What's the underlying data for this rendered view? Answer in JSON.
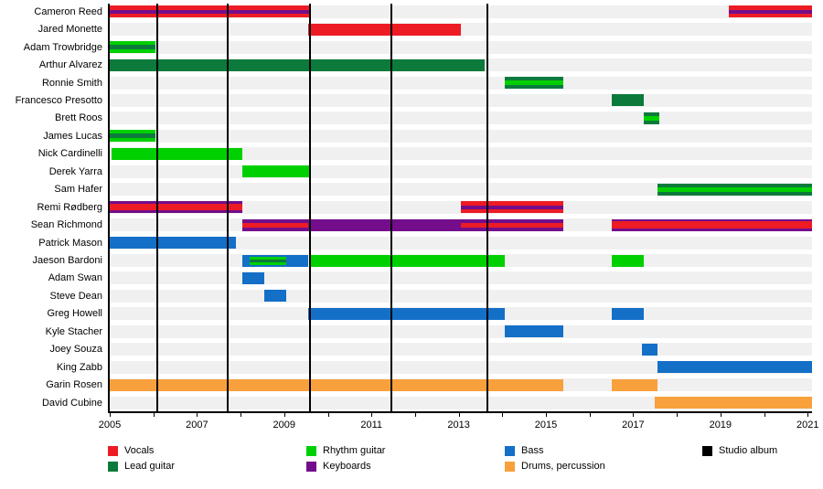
{
  "chart_data": {
    "type": "timeline",
    "title": "",
    "x_axis": {
      "min": 2005,
      "max": 2021.1,
      "tick_years": [
        2005,
        2006,
        2007,
        2008,
        2009,
        2010,
        2011,
        2012,
        2013,
        2014,
        2015,
        2016,
        2017,
        2018,
        2019,
        2020,
        2021
      ],
      "labeled_years": [
        2005,
        2007,
        2009,
        2011,
        2013,
        2015,
        2017,
        2019,
        2021
      ]
    },
    "roles": {
      "vocals": {
        "label": "Vocals",
        "color": "#ED1C24"
      },
      "lead": {
        "label": "Lead guitar",
        "color": "#0B7A3B"
      },
      "rhythm": {
        "label": "Rhythm guitar",
        "color": "#00D000"
      },
      "keys": {
        "label": "Keyboards",
        "color": "#740D8C"
      },
      "bass": {
        "label": "Bass",
        "color": "#146FC7"
      },
      "drums": {
        "label": "Drums, percussion",
        "color": "#F8A13C"
      },
      "album": {
        "label": "Studio album",
        "color": "#000000"
      }
    },
    "studio_album_years": [
      2006.1,
      2007.7,
      2009.6,
      2011.45,
      2013.65
    ],
    "legend_columns": [
      [
        "vocals",
        "lead"
      ],
      [
        "rhythm",
        "keys"
      ],
      [
        "bass",
        "drums"
      ],
      [
        "album"
      ]
    ],
    "members": [
      {
        "name": "Cameron Reed",
        "bars": [
          {
            "start": 2005.0,
            "end": 2009.6,
            "role": "vocals",
            "stripe": "keys",
            "stripe_h": 4
          },
          {
            "start": 2019.2,
            "end": 2021.1,
            "role": "vocals",
            "stripe": "keys",
            "stripe_h": 4
          }
        ]
      },
      {
        "name": "Jared Monette",
        "bars": [
          {
            "start": 2009.55,
            "end": 2013.05,
            "role": "vocals"
          }
        ]
      },
      {
        "name": "Adam Trowbridge",
        "bars": [
          {
            "start": 2005.0,
            "end": 2006.05,
            "role": "rhythm",
            "stripe": "lead",
            "stripe_h": 5
          }
        ]
      },
      {
        "name": "Arthur Alvarez",
        "bars": [
          {
            "start": 2005.0,
            "end": 2013.6,
            "role": "lead"
          }
        ]
      },
      {
        "name": "Ronnie Smith",
        "bars": [
          {
            "start": 2014.05,
            "end": 2015.4,
            "role": "lead",
            "stripe": "rhythm",
            "stripe_h": 5
          }
        ]
      },
      {
        "name": "Francesco Presotto",
        "bars": [
          {
            "start": 2016.5,
            "end": 2017.25,
            "role": "lead"
          }
        ]
      },
      {
        "name": "Brett Roos",
        "bars": [
          {
            "start": 2017.25,
            "end": 2017.6,
            "role": "lead",
            "stripe": "rhythm",
            "stripe_h": 5
          }
        ]
      },
      {
        "name": "James Lucas",
        "bars": [
          {
            "start": 2005.0,
            "end": 2006.05,
            "role": "rhythm",
            "stripe": "lead",
            "stripe_h": 5
          }
        ]
      },
      {
        "name": "Nick Cardinelli",
        "bars": [
          {
            "start": 2005.05,
            "end": 2008.05,
            "role": "rhythm"
          }
        ]
      },
      {
        "name": "Derek Yarra",
        "bars": [
          {
            "start": 2008.05,
            "end": 2009.6,
            "role": "rhythm"
          }
        ]
      },
      {
        "name": "Sam Hafer",
        "bars": [
          {
            "start": 2017.55,
            "end": 2021.1,
            "role": "lead",
            "stripe": "rhythm",
            "stripe_h": 5
          }
        ]
      },
      {
        "name": "Remi Rødberg",
        "bars": [
          {
            "start": 2005.0,
            "end": 2008.05,
            "role": "keys",
            "stripe": "vocals",
            "stripe_h": 7
          },
          {
            "start": 2013.05,
            "end": 2015.4,
            "role": "vocals",
            "stripe": "keys",
            "stripe_h": 4
          }
        ]
      },
      {
        "name": "Sean Richmond",
        "bars": [
          {
            "start": 2008.05,
            "end": 2009.55,
            "role": "keys",
            "stripe": "vocals",
            "stripe_h": 5
          },
          {
            "start": 2009.55,
            "end": 2013.05,
            "role": "keys"
          },
          {
            "start": 2013.05,
            "end": 2015.4,
            "role": "keys",
            "stripe": "vocals",
            "stripe_h": 5
          },
          {
            "start": 2016.5,
            "end": 2021.1,
            "role": "keys",
            "stripe": "vocals",
            "stripe_h": 8
          }
        ]
      },
      {
        "name": "Patrick Mason",
        "bars": [
          {
            "start": 2005.0,
            "end": 2007.9,
            "role": "bass"
          }
        ]
      },
      {
        "name": "Jaeson Bardoni",
        "bars": [
          {
            "start": 2008.05,
            "end": 2008.2,
            "role": "bass"
          },
          {
            "start": 2008.2,
            "end": 2009.05,
            "role": "bass",
            "stripe": "rhythm",
            "stripe_h": 9,
            "stripe2": "lead",
            "stripe2_h": 3
          },
          {
            "start": 2009.05,
            "end": 2009.55,
            "role": "bass"
          },
          {
            "start": 2009.6,
            "end": 2014.05,
            "role": "rhythm"
          },
          {
            "start": 2016.5,
            "end": 2017.25,
            "role": "rhythm"
          }
        ]
      },
      {
        "name": "Adam Swan",
        "bars": [
          {
            "start": 2008.05,
            "end": 2008.55,
            "role": "bass"
          }
        ]
      },
      {
        "name": "Steve Dean",
        "bars": [
          {
            "start": 2008.55,
            "end": 2009.05,
            "role": "bass"
          }
        ]
      },
      {
        "name": "Greg Howell",
        "bars": [
          {
            "start": 2009.55,
            "end": 2014.05,
            "role": "bass"
          },
          {
            "start": 2016.5,
            "end": 2017.25,
            "role": "bass"
          }
        ]
      },
      {
        "name": "Kyle Stacher",
        "bars": [
          {
            "start": 2014.05,
            "end": 2015.4,
            "role": "bass"
          }
        ]
      },
      {
        "name": "Joey Souza",
        "bars": [
          {
            "start": 2017.2,
            "end": 2017.55,
            "role": "bass"
          }
        ]
      },
      {
        "name": "King Zabb",
        "bars": [
          {
            "start": 2017.55,
            "end": 2021.1,
            "role": "bass"
          }
        ]
      },
      {
        "name": "Garin Rosen",
        "bars": [
          {
            "start": 2005.0,
            "end": 2015.4,
            "role": "drums"
          },
          {
            "start": 2016.5,
            "end": 2017.55,
            "role": "drums"
          }
        ]
      },
      {
        "name": "David Cubine",
        "bars": [
          {
            "start": 2017.5,
            "end": 2021.1,
            "role": "drums"
          }
        ]
      }
    ]
  }
}
